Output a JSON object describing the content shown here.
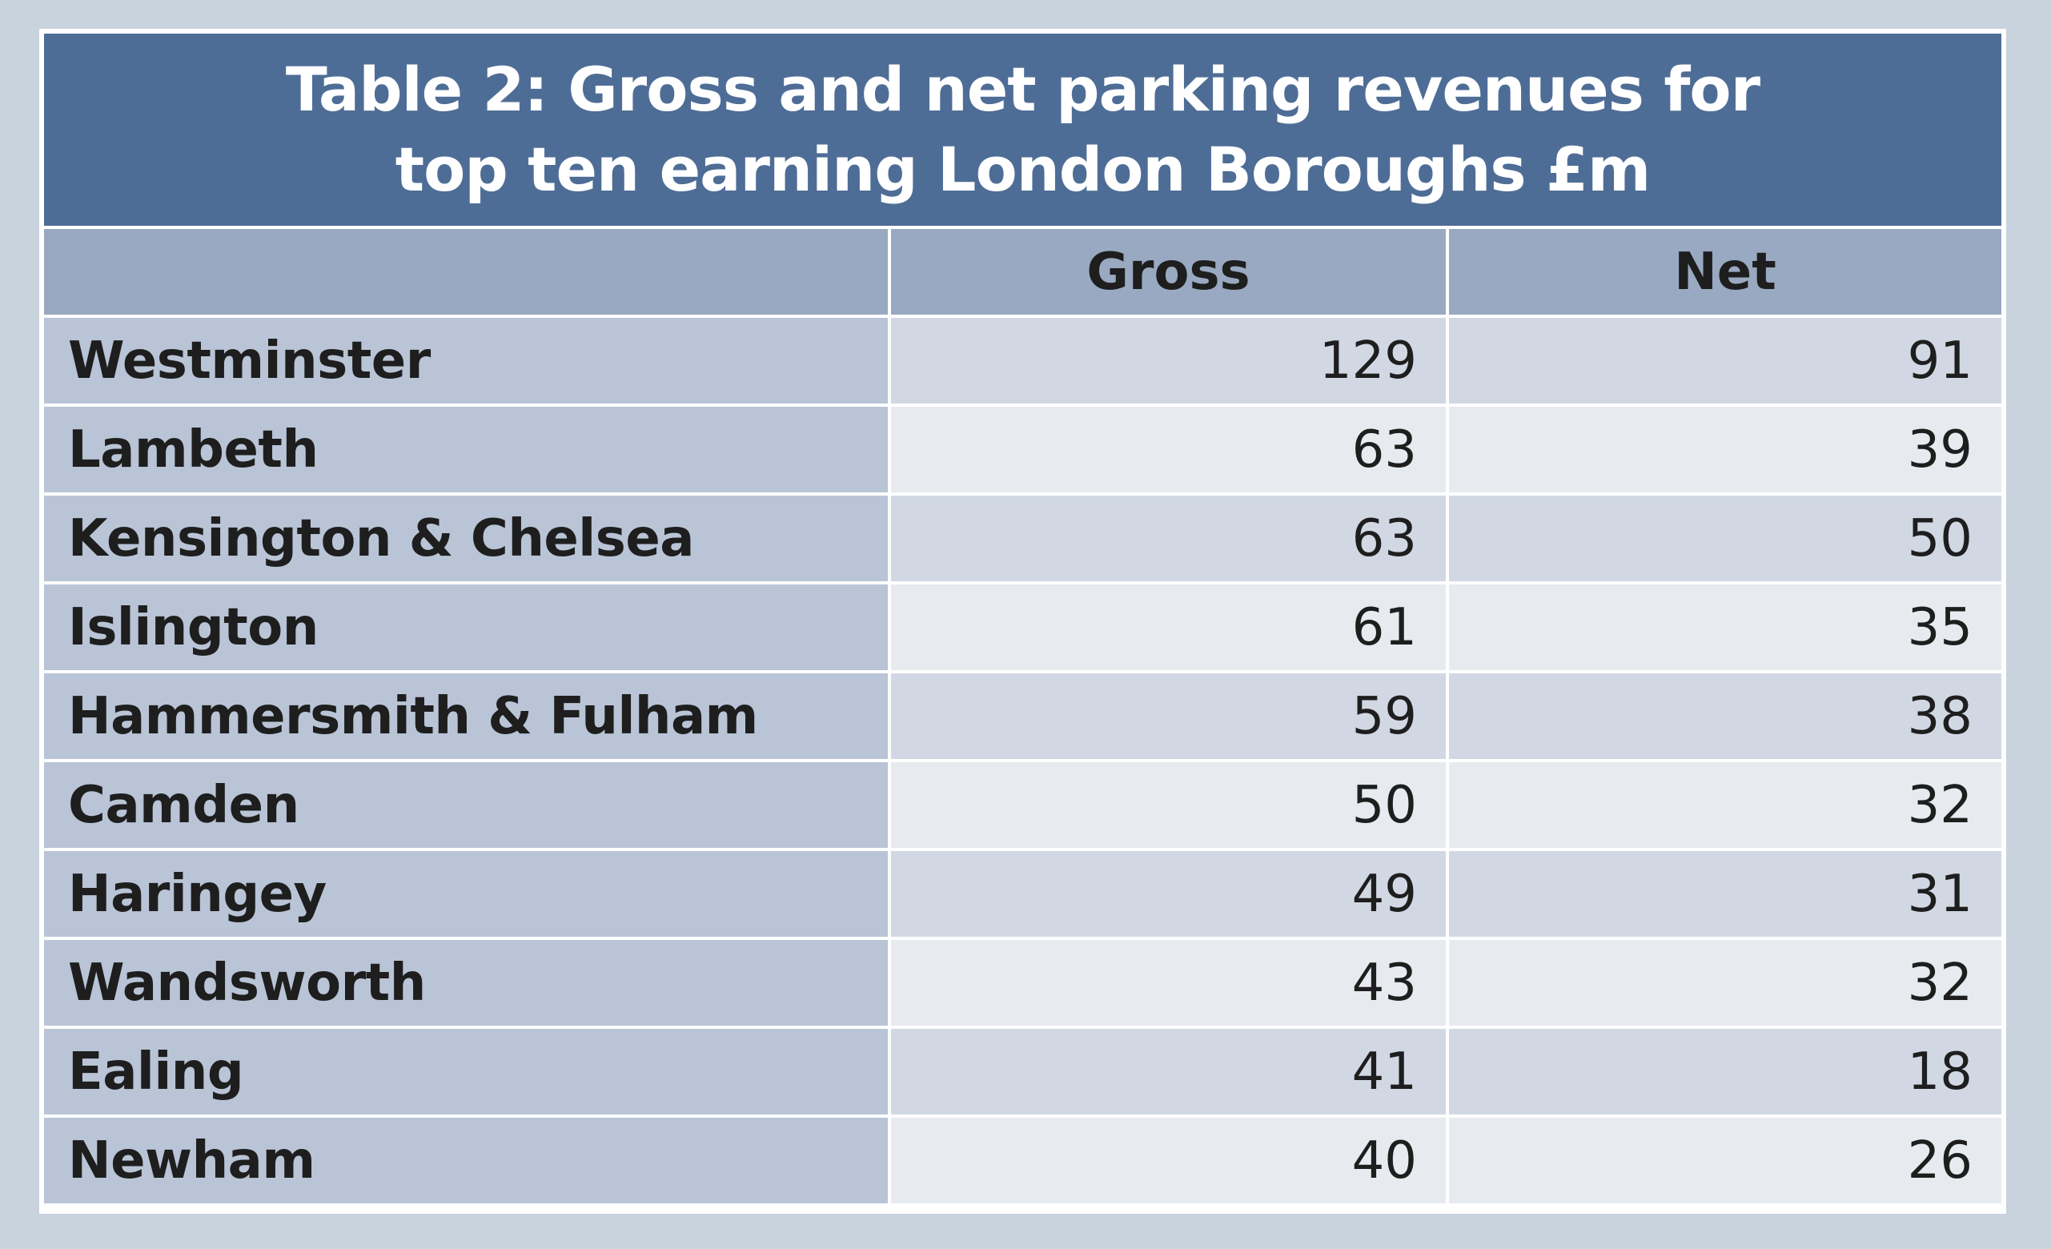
{
  "title": {
    "line1": "Table 2: Gross and net parking revenues for",
    "line2": "top ten earning London Boroughs £m"
  },
  "columns": {
    "borough": "",
    "gross": "Gross",
    "net": "Net"
  },
  "rows": [
    {
      "borough": "Westminster",
      "gross": "129",
      "net": "91"
    },
    {
      "borough": "Lambeth",
      "gross": "63",
      "net": "39"
    },
    {
      "borough": "Kensington & Chelsea",
      "gross": "63",
      "net": "50"
    },
    {
      "borough": "Islington",
      "gross": "61",
      "net": "35"
    },
    {
      "borough": "Hammersmith & Fulham",
      "gross": "59",
      "net": "38"
    },
    {
      "borough": "Camden",
      "gross": "50",
      "net": "32"
    },
    {
      "borough": "Haringey",
      "gross": "49",
      "net": "31"
    },
    {
      "borough": "Wandsworth",
      "gross": "43",
      "net": "32"
    },
    {
      "borough": "Ealing",
      "gross": "41",
      "net": "18"
    },
    {
      "borough": "Newham",
      "gross": "40",
      "net": "26"
    }
  ],
  "colors": {
    "background": "#c9d3de",
    "title_bar": "#4e6d96",
    "header_row": "#99a9c1",
    "name_column": "#b9c4d6",
    "row_dark": "#d1d8e3",
    "row_light": "#e7ebf0"
  }
}
